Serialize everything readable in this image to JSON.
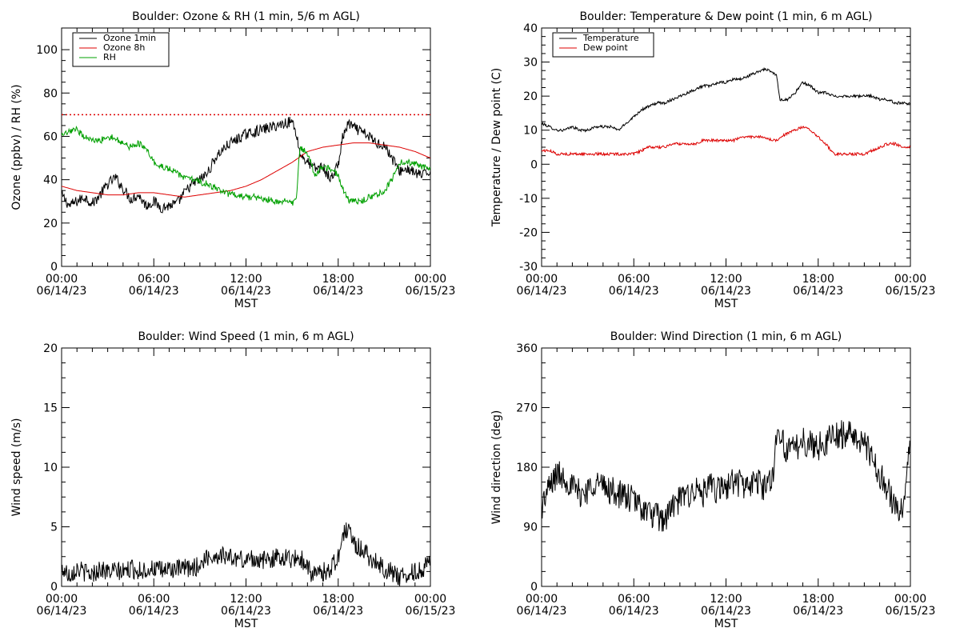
{
  "window": {
    "width": 1200,
    "height": 800
  },
  "chart_data": [
    {
      "type": "line",
      "title": "Boulder: Ozone & RH (1 min, 5/6 m AGL)",
      "xlabel": "MST",
      "ylabel": "Ozone (ppbv) / RH (%)",
      "xlim": [
        0,
        24
      ],
      "ylim": [
        0,
        110
      ],
      "x_ticks": [
        {
          "time": "00:00",
          "date": "06/14/23"
        },
        {
          "time": "06:00",
          "date": "06/14/23"
        },
        {
          "time": "12:00",
          "date": "06/14/23"
        },
        {
          "time": "18:00",
          "date": "06/14/23"
        },
        {
          "time": "00:00",
          "date": "06/15/23"
        }
      ],
      "y_ticks": [
        0,
        20,
        40,
        60,
        80,
        100
      ],
      "legend": {
        "position": "top-left",
        "entries": [
          "Ozone 1min",
          "Ozone 8h",
          "RH"
        ]
      },
      "reference_line": {
        "y": 70,
        "color": "#dd0000",
        "style": "dotted"
      },
      "series": [
        {
          "name": "Ozone 1min",
          "color": "#000000",
          "noise": 2.5,
          "x": [
            0,
            0.5,
            1,
            1.5,
            2,
            2.5,
            3,
            3.5,
            4,
            4.5,
            5,
            5.5,
            6,
            6.5,
            7,
            7.5,
            8,
            8.5,
            9,
            9.5,
            10,
            10.5,
            11,
            11.5,
            12,
            12.5,
            13,
            13.5,
            14,
            14.5,
            15,
            15.3,
            15.5,
            16,
            16.5,
            17,
            17.5,
            18,
            18.3,
            18.7,
            19,
            19.5,
            20,
            20.5,
            21,
            21.5,
            22,
            22.5,
            23,
            23.5,
            24
          ],
          "y": [
            33,
            28,
            30,
            32,
            29,
            33,
            38,
            41,
            36,
            31,
            33,
            28,
            30,
            27,
            28,
            29,
            34,
            38,
            40,
            43,
            50,
            54,
            57,
            59,
            61,
            62,
            63,
            64,
            65,
            66,
            67,
            61,
            52,
            48,
            45,
            46,
            40,
            47,
            60,
            66,
            64,
            62,
            60,
            57,
            56,
            50,
            44,
            45,
            43,
            42,
            44
          ]
        },
        {
          "name": "Ozone 8h",
          "color": "#dd0000",
          "noise": 0,
          "x": [
            0,
            1,
            2,
            3,
            4,
            5,
            6,
            7,
            8,
            9,
            10,
            11,
            12,
            13,
            14,
            15,
            16,
            17,
            18,
            19,
            20,
            21,
            22,
            23,
            24
          ],
          "y": [
            37,
            35,
            34,
            33,
            33,
            34,
            34,
            33,
            32,
            33,
            34,
            35,
            37,
            40,
            44,
            48,
            53,
            55,
            56,
            57,
            57,
            56,
            55,
            53,
            50
          ]
        },
        {
          "name": "RH",
          "color": "#00a000",
          "noise": 1.5,
          "x": [
            0,
            0.5,
            1,
            1.5,
            2,
            2.5,
            3,
            3.5,
            4,
            4.5,
            5,
            5.5,
            6,
            6.5,
            7,
            7.5,
            8,
            8.5,
            9,
            9.5,
            10,
            10.5,
            11,
            11.5,
            12,
            12.5,
            13,
            13.5,
            14,
            14.5,
            15,
            15.3,
            15.5,
            16,
            16.5,
            17,
            17.5,
            18,
            18.3,
            18.7,
            19,
            19.5,
            20,
            20.5,
            21,
            21.5,
            22,
            22.5,
            23,
            23.5,
            24
          ],
          "y": [
            60,
            62,
            63,
            60,
            58,
            58,
            60,
            59,
            57,
            55,
            57,
            54,
            48,
            46,
            45,
            43,
            41,
            40,
            39,
            38,
            36,
            34,
            33,
            33,
            32,
            32,
            31,
            31,
            30,
            30,
            29,
            33,
            55,
            52,
            42,
            46,
            45,
            42,
            36,
            30,
            30,
            30,
            32,
            33,
            35,
            40,
            48,
            48,
            47,
            46,
            45
          ]
        }
      ]
    },
    {
      "type": "line",
      "title": "Boulder: Temperature & Dew point (1 min, 6 m AGL)",
      "xlabel": "MST",
      "ylabel": "Temperature / Dew point (C)",
      "xlim": [
        0,
        24
      ],
      "ylim": [
        -30,
        40
      ],
      "x_ticks": [
        {
          "time": "00:00",
          "date": "06/14/23"
        },
        {
          "time": "06:00",
          "date": "06/14/23"
        },
        {
          "time": "12:00",
          "date": "06/14/23"
        },
        {
          "time": "18:00",
          "date": "06/14/23"
        },
        {
          "time": "00:00",
          "date": "06/15/23"
        }
      ],
      "y_ticks": [
        -30,
        -20,
        -10,
        0,
        10,
        20,
        30,
        40
      ],
      "legend": {
        "position": "top-left",
        "entries": [
          "Temperature",
          "Dew point"
        ]
      },
      "series": [
        {
          "name": "Temperature",
          "color": "#000000",
          "noise": 0.4,
          "x": [
            0,
            0.5,
            1,
            1.5,
            2,
            2.5,
            3,
            3.5,
            4,
            4.5,
            5,
            5.5,
            6,
            6.5,
            7,
            7.5,
            8,
            8.5,
            9,
            9.5,
            10,
            10.5,
            11,
            11.5,
            12,
            12.5,
            13,
            13.5,
            14,
            14.5,
            15,
            15.3,
            15.5,
            16,
            16.5,
            17,
            17.5,
            18,
            18.5,
            19,
            19.5,
            20,
            20.5,
            21,
            21.5,
            22,
            22.5,
            23,
            23.5,
            24
          ],
          "y": [
            12,
            11,
            10,
            10,
            11,
            10,
            10,
            11,
            11,
            11,
            10,
            12,
            14,
            16,
            17,
            18,
            18,
            19,
            20,
            21,
            22,
            23,
            23,
            24,
            24,
            25,
            25,
            26,
            27,
            28,
            27,
            26,
            19,
            19,
            21,
            24,
            23,
            21,
            21,
            20,
            20,
            20,
            20,
            20,
            20,
            19,
            19,
            18,
            18,
            18
          ]
        },
        {
          "name": "Dew point",
          "color": "#dd0000",
          "noise": 0.4,
          "x": [
            0,
            0.5,
            1,
            1.5,
            2,
            2.5,
            3,
            3.5,
            4,
            4.5,
            5,
            5.5,
            6,
            6.5,
            7,
            7.5,
            8,
            8.5,
            9,
            9.5,
            10,
            10.5,
            11,
            11.5,
            12,
            12.5,
            13,
            13.5,
            14,
            14.5,
            15,
            15.3,
            15.5,
            16,
            16.5,
            17,
            17.5,
            18,
            18.5,
            19,
            19.5,
            20,
            20.5,
            21,
            21.5,
            22,
            22.5,
            23,
            23.5,
            24
          ],
          "y": [
            4,
            4,
            3,
            3,
            3,
            3,
            3,
            3,
            3,
            3,
            3,
            3,
            3,
            4,
            5,
            5,
            5,
            6,
            6,
            6,
            6,
            7,
            7,
            7,
            7,
            7,
            8,
            8,
            8,
            8,
            7,
            7,
            8,
            9,
            10,
            11,
            10,
            8,
            6,
            3,
            3,
            3,
            3,
            3,
            4,
            5,
            6,
            6,
            5,
            5
          ]
        }
      ]
    },
    {
      "type": "line",
      "title": "Boulder: Wind Speed (1 min, 6 m AGL)",
      "xlabel": "MST",
      "ylabel": "Wind speed (m/s)",
      "xlim": [
        0,
        24
      ],
      "ylim": [
        0,
        20
      ],
      "x_ticks": [
        {
          "time": "00:00",
          "date": "06/14/23"
        },
        {
          "time": "06:00",
          "date": "06/14/23"
        },
        {
          "time": "12:00",
          "date": "06/14/23"
        },
        {
          "time": "18:00",
          "date": "06/14/23"
        },
        {
          "time": "00:00",
          "date": "06/15/23"
        }
      ],
      "y_ticks": [
        0,
        5,
        10,
        15,
        20
      ],
      "series": [
        {
          "color": "#000000",
          "noise": 0.8,
          "x": [
            0,
            0.5,
            1,
            1.5,
            2,
            2.5,
            3,
            3.5,
            4,
            4.5,
            5,
            5.5,
            6,
            6.5,
            7,
            7.5,
            8,
            8.5,
            9,
            9.5,
            10,
            10.5,
            11,
            11.5,
            12,
            12.5,
            13,
            13.5,
            14,
            14.5,
            15,
            15.5,
            16,
            16.3,
            16.7,
            17,
            17.5,
            18,
            18.3,
            18.7,
            19,
            19.5,
            20,
            20.5,
            21,
            21.5,
            22,
            22.5,
            23,
            23.5,
            24
          ],
          "y": [
            1.5,
            1,
            1.5,
            1.2,
            1,
            1.5,
            1.2,
            1.3,
            1.2,
            1.5,
            1.3,
            1.4,
            1.5,
            1.3,
            1.5,
            1.4,
            1.5,
            1.5,
            1.8,
            2.5,
            2.5,
            2.7,
            2.4,
            2.3,
            2.2,
            2.4,
            2.1,
            2.3,
            2.4,
            2.5,
            2.3,
            2.4,
            1.8,
            1,
            1,
            1.2,
            1.5,
            2.5,
            4.2,
            5,
            3.5,
            3.2,
            2.5,
            2,
            1.5,
            1.2,
            0.8,
            1,
            1.2,
            1.5,
            2
          ]
        }
      ]
    },
    {
      "type": "line",
      "title": "Boulder: Wind Direction (1 min, 6 m AGL)",
      "xlabel": "MST",
      "ylabel": "Wind direction (deg)",
      "xlim": [
        0,
        24
      ],
      "ylim": [
        0,
        360
      ],
      "x_ticks": [
        {
          "time": "00:00",
          "date": "06/14/23"
        },
        {
          "time": "06:00",
          "date": "06/14/23"
        },
        {
          "time": "12:00",
          "date": "06/14/23"
        },
        {
          "time": "18:00",
          "date": "06/14/23"
        },
        {
          "time": "00:00",
          "date": "06/15/23"
        }
      ],
      "y_ticks": [
        0,
        90,
        180,
        270,
        360
      ],
      "series": [
        {
          "color": "#000000",
          "noise": 22,
          "x": [
            0,
            0.5,
            1,
            1.5,
            2,
            2.5,
            3,
            3.5,
            4,
            4.5,
            5,
            5.5,
            6,
            6.5,
            7,
            7.5,
            8,
            8.5,
            9,
            9.5,
            10,
            10.5,
            11,
            11.5,
            12,
            12.5,
            13,
            13.5,
            14,
            14.5,
            15,
            15.3,
            15.5,
            16,
            16.5,
            17,
            17.5,
            18,
            18.5,
            19,
            19.5,
            20,
            20.5,
            21,
            21.5,
            22,
            22.5,
            23,
            23.5,
            24
          ],
          "y": [
            120,
            150,
            170,
            165,
            150,
            140,
            145,
            160,
            150,
            145,
            140,
            135,
            130,
            120,
            110,
            105,
            100,
            120,
            130,
            140,
            145,
            140,
            150,
            145,
            150,
            160,
            155,
            150,
            160,
            150,
            160,
            230,
            235,
            200,
            210,
            220,
            215,
            210,
            220,
            225,
            230,
            230,
            225,
            220,
            190,
            170,
            150,
            120,
            110,
            230
          ]
        }
      ]
    }
  ]
}
